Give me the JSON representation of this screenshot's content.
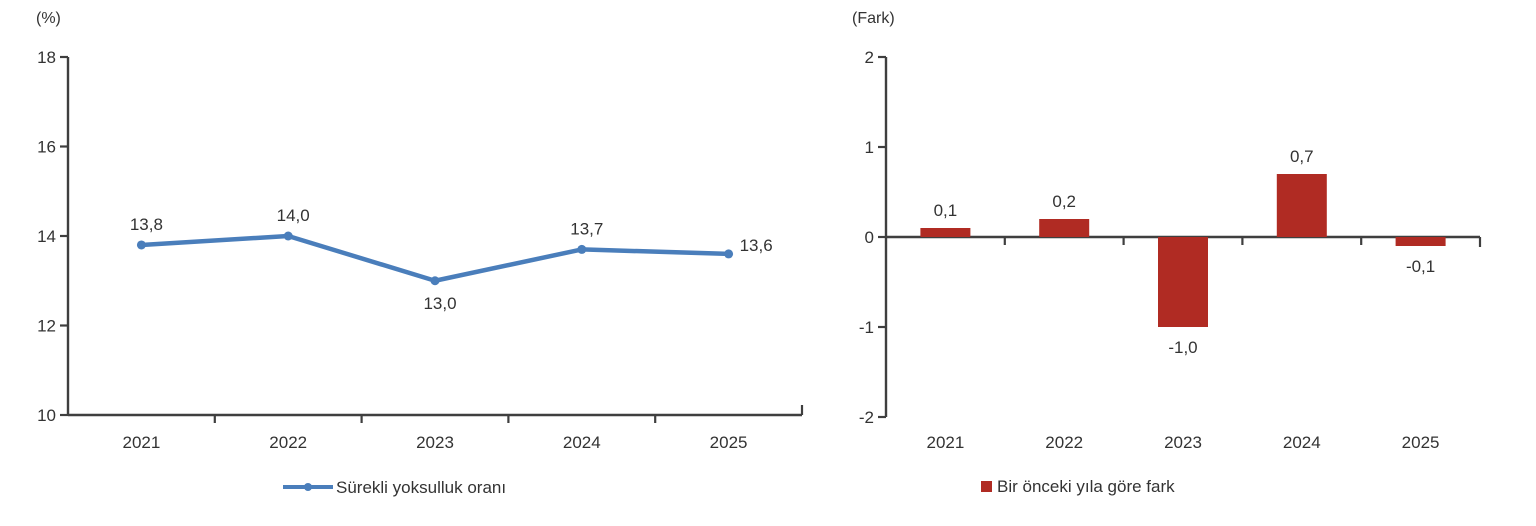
{
  "page": {
    "background_color": "#FFFFFF"
  },
  "style": {
    "text_color": "#333333",
    "axis_color": "#3F3F3F",
    "line_series_color": "#4A7EBB",
    "bar_series_color": "#B02B23"
  },
  "chart_data": [
    {
      "type": "line",
      "title": "",
      "unit_label": "(%)",
      "categories": [
        "2021",
        "2022",
        "2023",
        "2024",
        "2025"
      ],
      "series": [
        {
          "name": "Sürekli yoksulluk oranı",
          "values": [
            13.8,
            14.0,
            13.0,
            13.7,
            13.6
          ],
          "value_labels": [
            "13,8",
            "14,0",
            "13,0",
            "13,7",
            "13,6"
          ],
          "color": "#4A7EBB"
        }
      ],
      "label_positions": [
        "above",
        "above",
        "below",
        "above",
        "right"
      ],
      "ylim": [
        10,
        18
      ],
      "yticks": [
        "18",
        "16",
        "14",
        "12",
        "10"
      ],
      "ytick_values": [
        18,
        16,
        14,
        12,
        10
      ],
      "grid": false,
      "legend_position": "bottom",
      "legend_label": "Sürekli yoksulluk oranı"
    },
    {
      "type": "bar",
      "title": "",
      "unit_label": "(Fark)",
      "categories": [
        "2021",
        "2022",
        "2023",
        "2024",
        "2025"
      ],
      "series": [
        {
          "name": "Bir önceki yıla göre fark",
          "values": [
            0.1,
            0.2,
            -1.0,
            0.7,
            -0.1
          ],
          "value_labels": [
            "0,1",
            "0,2",
            "-1,0",
            "0,7",
            "-0,1"
          ],
          "color": "#B02B23"
        }
      ],
      "ylim": [
        -2,
        2
      ],
      "yticks": [
        "2",
        "1",
        "0",
        "-1",
        "-2"
      ],
      "ytick_values": [
        2,
        1,
        0,
        -1,
        -2
      ],
      "grid": false,
      "legend_position": "bottom",
      "legend_label": "Bir önceki yıla göre fark"
    }
  ]
}
